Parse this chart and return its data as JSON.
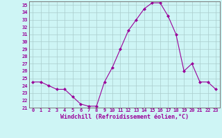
{
  "x": [
    0,
    1,
    2,
    3,
    4,
    5,
    6,
    7,
    8,
    9,
    10,
    11,
    12,
    13,
    14,
    15,
    16,
    17,
    18,
    19,
    20,
    21,
    22,
    23
  ],
  "y": [
    24.5,
    24.5,
    24.0,
    23.5,
    23.5,
    22.5,
    21.5,
    21.2,
    21.2,
    24.5,
    26.5,
    29.0,
    31.5,
    33.0,
    34.5,
    35.3,
    35.3,
    33.5,
    31.0,
    26.0,
    27.0,
    24.5,
    24.5,
    23.5
  ],
  "line_color": "#990099",
  "marker": "D",
  "marker_size": 2,
  "bg_color": "#cef5f5",
  "grid_color": "#aacccc",
  "xlabel": "Windchill (Refroidissement éolien,°C)",
  "ylim": [
    21,
    35.5
  ],
  "xlim": [
    -0.5,
    23.5
  ],
  "yticks": [
    21,
    22,
    23,
    24,
    25,
    26,
    27,
    28,
    29,
    30,
    31,
    32,
    33,
    34,
    35
  ],
  "xticks": [
    0,
    1,
    2,
    3,
    4,
    5,
    6,
    7,
    8,
    9,
    10,
    11,
    12,
    13,
    14,
    15,
    16,
    17,
    18,
    19,
    20,
    21,
    22,
    23
  ],
  "tick_fontsize": 5,
  "xlabel_fontsize": 6,
  "label_color": "#990099"
}
